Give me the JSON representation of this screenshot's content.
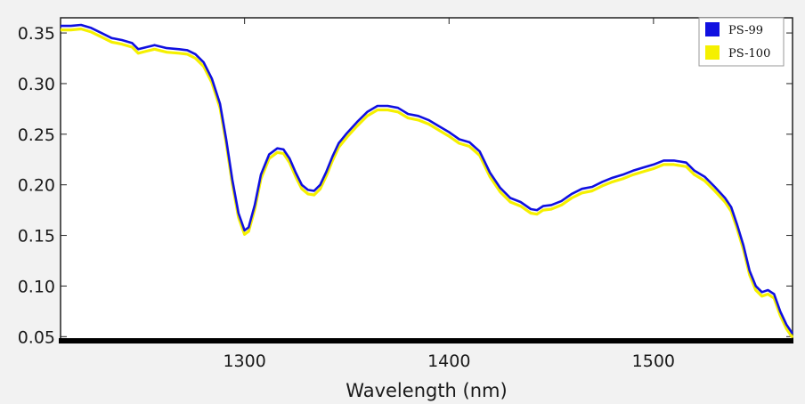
{
  "chart_data": {
    "type": "line",
    "title": "",
    "xlabel": "Wavelength (nm)",
    "ylabel": "",
    "xlim": [
      1210,
      1568
    ],
    "ylim": [
      0.045,
      0.365
    ],
    "x_ticks": [
      1300,
      1400,
      1500
    ],
    "x_tick_labels": [
      "1300",
      "1400",
      "1500"
    ],
    "y_ticks": [
      0.05,
      0.1,
      0.15,
      0.2,
      0.25,
      0.3,
      0.35
    ],
    "y_tick_labels": [
      "0.05",
      "0.10",
      "0.15",
      "0.20",
      "0.25",
      "0.30",
      "0.35"
    ],
    "grid": false,
    "legend_position": "top-right",
    "series": [
      {
        "name": "PS-99",
        "color": "#1010e0",
        "x": [
          1210,
          1215,
          1220,
          1225,
          1230,
          1235,
          1240,
          1245,
          1248,
          1252,
          1256,
          1262,
          1268,
          1272,
          1276,
          1280,
          1284,
          1288,
          1291,
          1294,
          1297,
          1300,
          1302,
          1305,
          1308,
          1312,
          1316,
          1319,
          1322,
          1325,
          1328,
          1331,
          1334,
          1337,
          1340,
          1343,
          1346,
          1350,
          1355,
          1360,
          1365,
          1370,
          1375,
          1380,
          1385,
          1390,
          1395,
          1400,
          1405,
          1410,
          1415,
          1420,
          1425,
          1430,
          1435,
          1440,
          1443,
          1446,
          1450,
          1455,
          1460,
          1465,
          1470,
          1475,
          1480,
          1485,
          1490,
          1495,
          1500,
          1505,
          1510,
          1513,
          1516,
          1520,
          1525,
          1530,
          1535,
          1538,
          1541,
          1544,
          1547,
          1550,
          1553,
          1556,
          1559,
          1562,
          1565,
          1568
        ],
        "y": [
          0.357,
          0.357,
          0.358,
          0.355,
          0.35,
          0.345,
          0.343,
          0.34,
          0.334,
          0.336,
          0.338,
          0.335,
          0.334,
          0.333,
          0.329,
          0.321,
          0.305,
          0.28,
          0.245,
          0.205,
          0.172,
          0.155,
          0.158,
          0.18,
          0.21,
          0.23,
          0.236,
          0.235,
          0.226,
          0.212,
          0.2,
          0.195,
          0.194,
          0.2,
          0.213,
          0.228,
          0.241,
          0.251,
          0.262,
          0.272,
          0.278,
          0.278,
          0.276,
          0.27,
          0.268,
          0.264,
          0.258,
          0.252,
          0.245,
          0.242,
          0.233,
          0.212,
          0.197,
          0.187,
          0.183,
          0.176,
          0.175,
          0.179,
          0.18,
          0.184,
          0.191,
          0.196,
          0.198,
          0.203,
          0.207,
          0.21,
          0.214,
          0.217,
          0.22,
          0.224,
          0.224,
          0.223,
          0.222,
          0.214,
          0.208,
          0.198,
          0.187,
          0.178,
          0.16,
          0.14,
          0.115,
          0.1,
          0.094,
          0.096,
          0.092,
          0.075,
          0.062,
          0.053
        ]
      },
      {
        "name": "PS-100",
        "color": "#f5f000",
        "offset": -0.004
      }
    ]
  }
}
